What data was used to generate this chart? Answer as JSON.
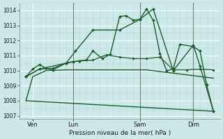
{
  "background_color": "#cce8e8",
  "grid_color": "#b0d8d8",
  "line_color": "#1a5c28",
  "ylim": [
    1006.8,
    1014.5
  ],
  "yticks": [
    1007,
    1008,
    1009,
    1010,
    1011,
    1012,
    1013,
    1014
  ],
  "xlabel": "Pression niveau de la mer( hPa )",
  "day_labels": [
    "Ven",
    "Lun",
    "Sam",
    "Dim"
  ],
  "day_positions": [
    1,
    4,
    9,
    13
  ],
  "xlim": [
    0,
    15
  ],
  "series": [
    {
      "x": [
        0.5,
        1.0,
        1.5,
        2.0,
        2.5,
        3.5,
        4.0,
        4.5,
        5.0,
        5.5,
        6.2,
        6.8,
        7.5,
        8.0,
        8.5,
        9.0,
        9.5,
        10.0,
        10.5,
        11.0,
        11.5,
        12.0,
        13.0,
        13.5,
        14.0,
        14.5
      ],
      "y": [
        1009.6,
        1010.1,
        1010.4,
        1010.15,
        1010.05,
        1010.5,
        1010.6,
        1010.65,
        1010.7,
        1011.3,
        1010.8,
        1011.1,
        1013.6,
        1013.65,
        1013.35,
        1013.4,
        1014.1,
        1013.35,
        1011.15,
        1010.0,
        1010.1,
        1011.75,
        1011.6,
        1011.3,
        1009.05,
        1007.3
      ],
      "marker": "D",
      "markersize": 2.0,
      "linewidth": 1.0
    },
    {
      "x": [
        0.5,
        1.5,
        3.5,
        4.2,
        5.5,
        7.5,
        9.0,
        10.0,
        11.5,
        13.0,
        13.5,
        14.5
      ],
      "y": [
        1009.6,
        1010.1,
        1010.5,
        1011.3,
        1012.7,
        1012.7,
        1013.4,
        1014.1,
        1010.0,
        1011.7,
        1010.3,
        1007.3
      ],
      "marker": "D",
      "markersize": 2.0,
      "linewidth": 1.0
    },
    {
      "x": [
        0.5,
        1.5,
        2.5,
        3.5,
        4.5,
        5.5,
        6.5,
        7.5,
        8.5,
        9.5,
        10.5,
        11.5,
        12.5,
        13.5,
        14.5
      ],
      "y": [
        1009.6,
        1010.1,
        1010.15,
        1010.5,
        1010.65,
        1010.7,
        1011.05,
        1010.9,
        1010.8,
        1010.8,
        1010.9,
        1010.05,
        1010.05,
        1010.1,
        1010.05
      ],
      "marker": "D",
      "markersize": 1.8,
      "linewidth": 0.9
    },
    {
      "x": [
        0.5,
        14.5
      ],
      "y": [
        1008.0,
        1007.3
      ],
      "marker": null,
      "markersize": 0,
      "linewidth": 1.0
    },
    {
      "x": [
        0.5,
        1.0,
        2.0,
        3.5,
        7.5,
        9.5,
        14.5
      ],
      "y": [
        1008.0,
        1009.6,
        1010.0,
        1010.05,
        1010.05,
        1010.05,
        1009.5
      ],
      "marker": null,
      "markersize": 0,
      "linewidth": 1.0
    }
  ],
  "vline_positions": [
    4,
    9,
    13
  ],
  "vline_color": "#4a6a4a"
}
